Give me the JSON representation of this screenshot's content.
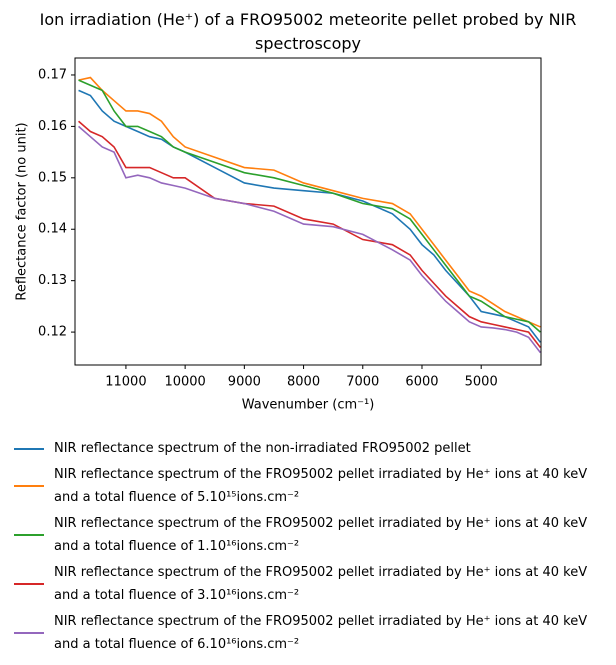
{
  "chart_data": {
    "type": "line",
    "title": "Ion irradiation (He⁺) of a FRO95002 meteorite pellet probed by NIR spectroscopy",
    "x_label": "Wavenumber (cm⁻¹)",
    "y_label": "Reflectance factor (no unit)",
    "x": [
      11800,
      11600,
      11400,
      11200,
      11000,
      10800,
      10600,
      10400,
      10200,
      10000,
      9500,
      9000,
      8500,
      8000,
      7500,
      7000,
      6500,
      6200,
      6000,
      5800,
      5600,
      5400,
      5200,
      5000,
      4800,
      4600,
      4400,
      4200,
      4000
    ],
    "xlim": [
      11860,
      3990
    ],
    "xticks": [
      11000,
      10000,
      9000,
      8000,
      7000,
      6000,
      5000
    ],
    "ylim": [
      0.1136,
      0.1733
    ],
    "yticks": [
      0.12,
      0.13,
      0.14,
      0.15,
      0.16,
      0.17
    ],
    "legend_position": "below",
    "series": [
      {
        "name": "NIR reflectance spectrum of the non-irradiated FRO95002 pellet",
        "color": "#1f77b4",
        "values": [
          0.167,
          0.166,
          0.163,
          0.161,
          0.16,
          0.159,
          0.158,
          0.1575,
          0.156,
          0.155,
          0.152,
          0.149,
          0.148,
          0.1475,
          0.147,
          0.1455,
          0.143,
          0.14,
          0.137,
          0.135,
          0.132,
          0.1295,
          0.127,
          0.124,
          0.1235,
          0.123,
          0.122,
          0.121,
          0.118
        ]
      },
      {
        "name": "NIR reflectance spectrum of the FRO95002 pellet irradiated by He⁺ ions at 40 keV and a total fluence of 5.10¹⁵ions.cm⁻²",
        "color": "#ff7f0e",
        "values": [
          0.169,
          0.1695,
          0.167,
          0.165,
          0.163,
          0.163,
          0.1625,
          0.161,
          0.158,
          0.156,
          0.154,
          0.152,
          0.1515,
          0.149,
          0.1475,
          0.146,
          0.145,
          0.143,
          0.14,
          0.137,
          0.134,
          0.131,
          0.128,
          0.127,
          0.1255,
          0.124,
          0.123,
          0.122,
          0.121
        ]
      },
      {
        "name": "NIR reflectance spectrum of the FRO95002 pellet irradiated by He⁺ ions at 40 keV and a total fluence of 1.10¹⁶ions.cm⁻²",
        "color": "#2ca02c",
        "values": [
          0.169,
          0.168,
          0.167,
          0.163,
          0.16,
          0.16,
          0.159,
          0.158,
          0.156,
          0.155,
          0.153,
          0.151,
          0.15,
          0.1485,
          0.147,
          0.145,
          0.144,
          0.142,
          0.139,
          0.136,
          0.133,
          0.13,
          0.127,
          0.126,
          0.1245,
          0.123,
          0.1225,
          0.122,
          0.12
        ]
      },
      {
        "name": "NIR reflectance spectrum of the FRO95002 pellet irradiated by He⁺ ions at 40 keV and a total fluence of 3.10¹⁶ions.cm⁻²",
        "color": "#d62728",
        "values": [
          0.161,
          0.159,
          0.158,
          0.156,
          0.152,
          0.152,
          0.152,
          0.151,
          0.15,
          0.15,
          0.146,
          0.145,
          0.1445,
          0.142,
          0.141,
          0.138,
          0.137,
          0.135,
          0.132,
          0.1295,
          0.127,
          0.125,
          0.123,
          0.122,
          0.1215,
          0.121,
          0.1205,
          0.12,
          0.117
        ]
      },
      {
        "name": "NIR reflectance spectrum of the FRO95002 pellet irradiated by He⁺ ions at 40 keV and a total fluence of 6.10¹⁶ions.cm⁻²",
        "color": "#9467bd",
        "values": [
          0.16,
          0.158,
          0.156,
          0.155,
          0.15,
          0.1505,
          0.15,
          0.149,
          0.1485,
          0.148,
          0.146,
          0.145,
          0.1435,
          0.141,
          0.1405,
          0.139,
          0.136,
          0.134,
          0.131,
          0.1285,
          0.126,
          0.124,
          0.122,
          0.121,
          0.1208,
          0.1205,
          0.12,
          0.119,
          0.116
        ]
      }
    ]
  }
}
